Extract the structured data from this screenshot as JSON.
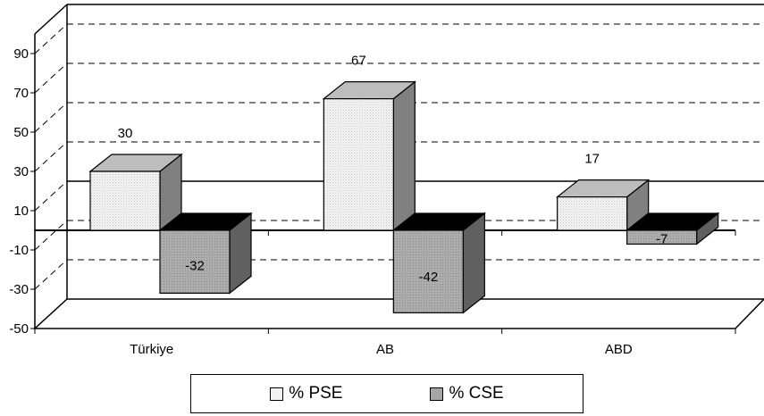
{
  "chart_data": {
    "type": "bar",
    "categories": [
      "Türkiye",
      "AB",
      "ABD"
    ],
    "series": [
      {
        "name": "% PSE",
        "values": [
          30,
          67,
          17
        ],
        "color": "#f2f2f2"
      },
      {
        "name": "% CSE",
        "values": [
          -32,
          -42,
          -7
        ],
        "color": "#a6a6a6"
      }
    ],
    "data_labels": [
      [
        "30",
        "67",
        "17"
      ],
      [
        "-32",
        "-42",
        "-7"
      ]
    ],
    "yticks": [
      "90",
      "70",
      "50",
      "30",
      "10",
      "-10",
      "-30",
      "-50"
    ],
    "ylim": [
      -50,
      100
    ],
    "grid": "dashed horizontal",
    "legend_position": "bottom",
    "three_d": true,
    "title": "",
    "xlabel": "",
    "ylabel": ""
  }
}
